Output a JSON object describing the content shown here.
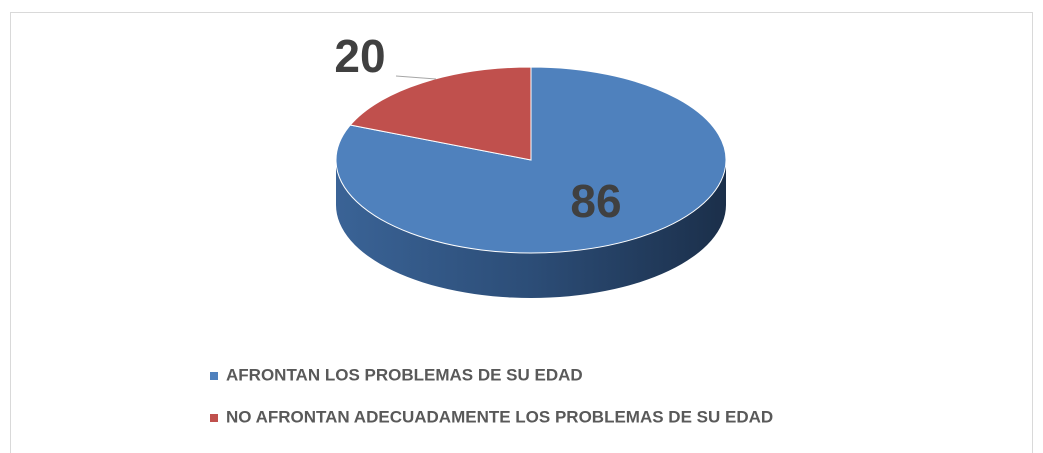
{
  "chart_data": {
    "type": "pie",
    "categories": [
      "AFRONTAN LOS PROBLEMAS DE SU EDAD",
      "NO AFRONTAN ADECUADAMENTE LOS PROBLEMAS DE SU EDAD"
    ],
    "values": [
      86,
      20
    ],
    "colors": [
      "#4f81bd",
      "#c0504d"
    ],
    "legend": "bottom"
  }
}
